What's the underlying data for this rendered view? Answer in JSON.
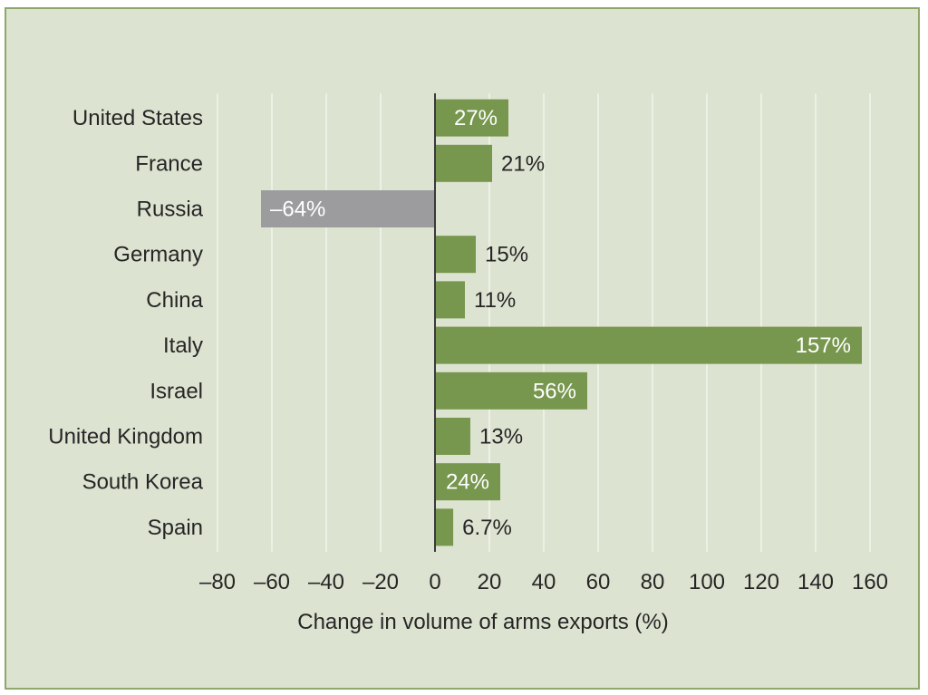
{
  "chart_data": {
    "type": "bar",
    "orientation": "horizontal",
    "categories": [
      "United States",
      "France",
      "Russia",
      "Germany",
      "China",
      "Italy",
      "Israel",
      "United Kingdom",
      "South Korea",
      "Spain"
    ],
    "values": [
      27,
      21,
      -64,
      15,
      11,
      157,
      56,
      13,
      24,
      6.7
    ],
    "value_labels": [
      "27%",
      "21%",
      "–64%",
      "15%",
      "11%",
      "157%",
      "56%",
      "13%",
      "24%",
      "6.7%"
    ],
    "xlabel": "Change in volume of arms exports (%)",
    "xlim": [
      -80,
      160
    ],
    "xticks": [
      -80,
      -60,
      -40,
      -20,
      0,
      20,
      40,
      60,
      80,
      100,
      120,
      140,
      160
    ],
    "xtick_labels": [
      "–80",
      "–60",
      "–40",
      "–20",
      "0",
      "20",
      "40",
      "60",
      "80",
      "100",
      "120",
      "140",
      "160"
    ],
    "grid": "vertical",
    "colors": {
      "positive": "#77964e",
      "negative": "#9c9c9e",
      "background": "#dde3d1",
      "grid": "#f2f4ec",
      "border": "#8da86a",
      "text": "#262626",
      "label_inside": "#ffffff"
    }
  }
}
